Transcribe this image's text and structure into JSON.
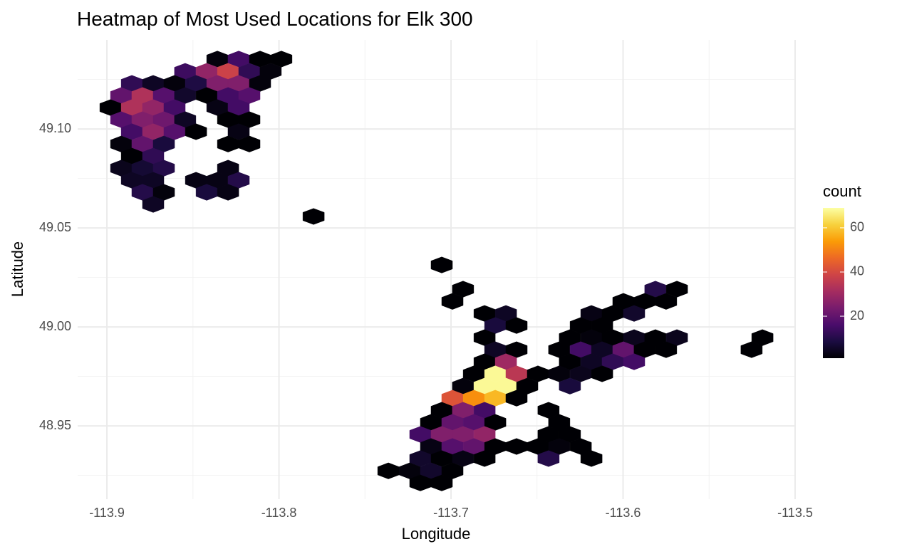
{
  "chart_data": {
    "type": "hexbin",
    "title": "Heatmap of Most Used Locations for Elk 300",
    "x_label": "Longitude",
    "y_label": "Latitude",
    "legend_title": "count",
    "xlim": [
      -113.917,
      -113.5
    ],
    "ylim": [
      48.913,
      49.145
    ],
    "xticks": [
      -113.9,
      -113.8,
      -113.7,
      -113.6,
      -113.5
    ],
    "yticks": [
      48.95,
      {
        "value": 49.0,
        "label": "49.00"
      },
      49.05,
      {
        "value": 49.1,
        "label": "49.10"
      }
    ],
    "grid": true,
    "colorlim": [
      1,
      69
    ],
    "colorticks": [
      20,
      40,
      60
    ],
    "colorscale": [
      "#000004",
      "#1b0c41",
      "#4a0c6b",
      "#781c6d",
      "#a52c60",
      "#cf4446",
      "#ed6925",
      "#fb9b06",
      "#f7d13d",
      "#fcffa4"
    ],
    "x": [
      -113.8358,
      -113.8234,
      -113.811,
      -113.7986,
      -113.8545,
      -113.842,
      -113.8296,
      -113.8172,
      -113.8048,
      -113.8855,
      -113.8731,
      -113.8607,
      -113.8482,
      -113.8358,
      -113.8234,
      -113.811,
      -113.8917,
      -113.8793,
      -113.8669,
      -113.8545,
      -113.842,
      -113.8296,
      -113.8172,
      -113.8979,
      -113.8855,
      -113.8731,
      -113.8607,
      -113.8358,
      -113.8234,
      -113.8917,
      -113.8793,
      -113.8669,
      -113.8545,
      -113.8296,
      -113.8172,
      -113.8855,
      -113.8731,
      -113.8607,
      -113.8482,
      -113.8234,
      -113.8917,
      -113.8793,
      -113.8669,
      -113.8296,
      -113.8172,
      -113.8855,
      -113.8731,
      -113.8917,
      -113.8793,
      -113.8669,
      -113.8296,
      -113.8855,
      -113.8731,
      -113.8482,
      -113.8358,
      -113.8234,
      -113.8793,
      -113.8669,
      -113.842,
      -113.8296,
      -113.8731,
      -113.7799,
      -113.7054,
      -113.693,
      -113.5812,
      -113.5687,
      -113.6992,
      -113.5998,
      -113.5874,
      -113.575,
      -113.6805,
      -113.6681,
      -113.6184,
      -113.606,
      -113.5936,
      -113.6743,
      -113.6619,
      -113.6246,
      -113.6122,
      -113.6805,
      -113.6309,
      -113.6184,
      -113.606,
      -113.5936,
      -113.5812,
      -113.5687,
      -113.519,
      -113.6743,
      -113.6619,
      -113.6371,
      -113.6246,
      -113.6122,
      -113.5998,
      -113.5874,
      -113.575,
      -113.5253,
      -113.6805,
      -113.6681,
      -113.6309,
      -113.6184,
      -113.606,
      -113.5936,
      -113.6867,
      -113.6743,
      -113.6619,
      -113.6495,
      -113.6371,
      -113.6246,
      -113.6122,
      -113.693,
      -113.6805,
      -113.6681,
      -113.6557,
      -113.6309,
      -113.6992,
      -113.6867,
      -113.6743,
      -113.6619,
      -113.7054,
      -113.693,
      -113.6805,
      -113.6433,
      -113.7116,
      -113.6992,
      -113.6867,
      -113.6743,
      -113.6371,
      -113.7178,
      -113.7054,
      -113.693,
      -113.6805,
      -113.6433,
      -113.6309,
      -113.7116,
      -113.6992,
      -113.6867,
      -113.6743,
      -113.6619,
      -113.6495,
      -113.6371,
      -113.6246,
      -113.7178,
      -113.7054,
      -113.693,
      -113.6805,
      -113.6433,
      -113.6184,
      -113.7364,
      -113.724,
      -113.7116,
      -113.6992,
      -113.7178,
      -113.7054
    ],
    "y": [
      49.1353,
      49.1353,
      49.1353,
      49.1353,
      49.1291,
      49.1291,
      49.1291,
      49.1291,
      49.1291,
      49.123,
      49.123,
      49.123,
      49.123,
      49.123,
      49.123,
      49.123,
      49.1169,
      49.1169,
      49.1169,
      49.1169,
      49.1169,
      49.1169,
      49.1169,
      49.1108,
      49.1108,
      49.1108,
      49.1108,
      49.1108,
      49.1108,
      49.1047,
      49.1047,
      49.1047,
      49.1047,
      49.1047,
      49.1047,
      49.0986,
      49.0986,
      49.0986,
      49.0986,
      49.0986,
      49.0924,
      49.0924,
      49.0924,
      49.0924,
      49.0924,
      49.0863,
      49.0863,
      49.0802,
      49.0802,
      49.0802,
      49.0802,
      49.0741,
      49.0741,
      49.0741,
      49.0741,
      49.0741,
      49.068,
      49.068,
      49.068,
      49.068,
      49.0619,
      49.0558,
      49.0313,
      49.0191,
      49.0191,
      49.0191,
      49.0129,
      49.0129,
      49.0129,
      49.0129,
      49.0068,
      49.0068,
      49.0068,
      49.0068,
      49.0068,
      49.0007,
      49.0007,
      49.0007,
      49.0007,
      48.9946,
      48.9946,
      48.9946,
      48.9946,
      48.9946,
      48.9946,
      48.9946,
      48.9946,
      48.9885,
      48.9885,
      48.9885,
      48.9885,
      48.9885,
      48.9885,
      48.9885,
      48.9885,
      48.9885,
      48.9824,
      48.9824,
      48.9824,
      48.9824,
      48.9824,
      48.9824,
      48.9763,
      48.9763,
      48.9763,
      48.9763,
      48.9763,
      48.9763,
      48.9763,
      48.9701,
      48.9701,
      48.9701,
      48.9701,
      48.9701,
      48.964,
      48.964,
      48.964,
      48.964,
      48.9579,
      48.9579,
      48.9579,
      48.9579,
      48.9518,
      48.9518,
      48.9518,
      48.9518,
      48.9518,
      48.9457,
      48.9457,
      48.9457,
      48.9457,
      48.9457,
      48.9457,
      48.9396,
      48.9396,
      48.9396,
      48.9396,
      48.9396,
      48.9396,
      48.9396,
      48.9396,
      48.9335,
      48.9335,
      48.9335,
      48.9335,
      48.9335,
      48.9335,
      48.9273,
      48.9273,
      48.9273,
      48.9273,
      48.9212,
      48.9212
    ],
    "values": [
      2,
      15,
      1,
      1,
      14,
      28,
      38,
      12,
      2,
      12,
      5,
      2,
      9,
      25,
      25,
      2,
      20,
      33,
      18,
      6,
      1,
      15,
      18,
      1,
      33,
      28,
      15,
      3,
      15,
      18,
      25,
      22,
      5,
      1,
      1,
      15,
      28,
      18,
      1,
      3,
      2,
      20,
      8,
      1,
      1,
      1,
      12,
      4,
      7,
      10,
      3,
      5,
      5,
      3,
      3,
      10,
      10,
      2,
      8,
      3,
      5,
      1,
      1,
      1,
      10,
      1,
      1,
      1,
      1,
      1,
      1,
      5,
      3,
      1,
      6,
      8,
      1,
      1,
      1,
      1,
      1,
      2,
      1,
      4,
      1,
      4,
      1,
      5,
      1,
      1,
      15,
      5,
      20,
      1,
      1,
      1,
      1,
      30,
      1,
      5,
      12,
      15,
      1,
      68,
      35,
      1,
      2,
      4,
      1,
      2,
      68,
      68,
      1,
      8,
      42,
      52,
      58,
      1,
      1,
      25,
      15,
      1,
      1,
      20,
      18,
      1,
      1,
      15,
      25,
      25,
      28,
      1,
      1,
      3,
      18,
      20,
      1,
      1,
      1,
      2,
      1,
      6,
      1,
      3,
      1,
      10,
      1,
      1,
      2,
      6,
      1,
      1,
      1
    ]
  }
}
